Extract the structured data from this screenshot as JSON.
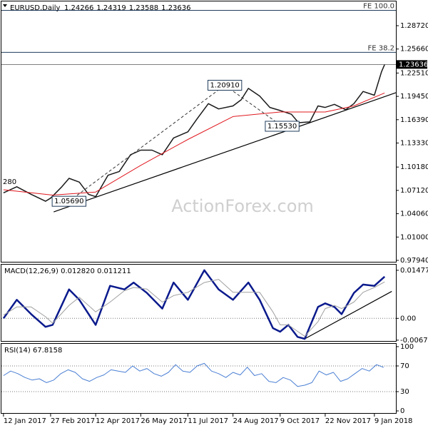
{
  "chart_data": [
    {
      "type": "line",
      "title": "EURUSD,Daily",
      "ohlc": [
        1.24266,
        1.24319,
        1.23588,
        1.23636
      ],
      "watermark": "ActionForex.com",
      "cut_label": "280",
      "last_price": 1.23636,
      "xlim": [
        "2017-01-10",
        "2018-01-30"
      ],
      "ylim": [
        0.9766,
        1.3078
      ],
      "yticks": [
        {
          "value": 1.2872,
          "label": "1.28720"
        },
        {
          "value": 1.2566,
          "label": "1.25660"
        },
        {
          "value": 1.2251,
          "label": "1.22510"
        },
        {
          "value": 1.1945,
          "label": "1.19450"
        },
        {
          "value": 1.1639,
          "label": "1.16390"
        },
        {
          "value": 1.1333,
          "label": "1.13330"
        },
        {
          "value": 1.1018,
          "label": "1.10180"
        },
        {
          "value": 1.0712,
          "label": "1.07120"
        },
        {
          "value": 1.0406,
          "label": "1.04060"
        },
        {
          "value": 1.01,
          "label": "1.01000"
        },
        {
          "value": 0.9794,
          "label": "0.97940"
        }
      ],
      "series": [
        {
          "color": "#1a1a1a",
          "x": [
            "2017-01-12",
            "2017-01-25",
            "2017-02-08",
            "2017-02-22",
            "2017-02-27",
            "2017-03-10",
            "2017-03-17",
            "2017-03-27",
            "2017-04-05",
            "2017-04-12",
            "2017-04-24",
            "2017-05-05",
            "2017-05-16",
            "2017-05-26",
            "2017-06-06",
            "2017-06-16",
            "2017-06-27",
            "2017-07-11",
            "2017-07-20",
            "2017-07-31",
            "2017-08-10",
            "2017-08-24",
            "2017-09-01",
            "2017-09-08",
            "2017-09-19",
            "2017-09-29",
            "2017-10-09",
            "2017-10-20",
            "2017-10-27",
            "2017-11-07",
            "2017-11-15",
            "2017-11-22",
            "2017-12-01",
            "2017-12-12",
            "2017-12-20",
            "2017-12-29",
            "2018-01-09",
            "2018-01-16",
            "2018-01-19"
          ],
          "values": [
            1.068,
            1.076,
            1.066,
            1.057,
            1.061,
            1.076,
            1.087,
            1.082,
            1.066,
            1.063,
            1.091,
            1.096,
            1.118,
            1.124,
            1.124,
            1.118,
            1.14,
            1.148,
            1.165,
            1.185,
            1.178,
            1.182,
            1.19,
            1.205,
            1.195,
            1.18,
            1.176,
            1.171,
            1.16,
            1.161,
            1.182,
            1.18,
            1.184,
            1.177,
            1.185,
            1.201,
            1.196,
            1.227,
            1.23636
          ]
        },
        {
          "color": "#e0181f",
          "x": [
            "2017-01-12",
            "2017-03-01",
            "2017-04-12",
            "2017-05-26",
            "2017-07-11",
            "2017-08-24",
            "2017-10-09",
            "2017-11-22",
            "2017-12-20",
            "2018-01-19"
          ],
          "values": [
            1.072,
            1.065,
            1.069,
            1.104,
            1.138,
            1.168,
            1.174,
            1.174,
            1.182,
            1.199
          ]
        }
      ],
      "trendlines": [
        {
          "color": "#000000",
          "x": [
            "2017-03-02",
            "2018-01-30"
          ],
          "values": [
            1.043,
            1.1993
          ]
        }
      ],
      "levels": [
        {
          "label": "FE 100.0",
          "value": 1.3073
        },
        {
          "label": "FE 38.2",
          "value": 1.2522
        }
      ],
      "annotations": [
        {
          "label": "1.05690",
          "value": 1.0569,
          "x": "2017-03-17"
        },
        {
          "label": "1.20910",
          "value": 1.2091,
          "x": "2017-08-16"
        },
        {
          "label": "1.15530",
          "value": 1.1553,
          "x": "2017-10-11"
        }
      ]
    },
    {
      "type": "line",
      "title": "MACD(12,26,9) 0.012820 0.011211",
      "xlim": [
        "2017-01-10",
        "2018-01-30"
      ],
      "ylim": [
        -0.00695,
        0.01651
      ],
      "yticks": [
        0.014776,
        {
          "value": 0,
          "label": "0.00"
        },
        -0.006705
      ],
      "levels": [
        0
      ],
      "series": [
        {
          "color": "#0a1a8c",
          "x": [
            "2017-01-12",
            "2017-01-25",
            "2017-02-08",
            "2017-02-22",
            "2017-03-01",
            "2017-03-17",
            "2017-03-27",
            "2017-04-12",
            "2017-04-26",
            "2017-05-10",
            "2017-05-19",
            "2017-06-01",
            "2017-06-16",
            "2017-06-27",
            "2017-07-11",
            "2017-07-27",
            "2017-08-10",
            "2017-08-24",
            "2017-09-08",
            "2017-09-19",
            "2017-10-02",
            "2017-10-09",
            "2017-10-17",
            "2017-10-26",
            "2017-11-02",
            "2017-11-15",
            "2017-11-22",
            "2017-12-01",
            "2017-12-08",
            "2017-12-20",
            "2017-12-29",
            "2018-01-09",
            "2018-01-19"
          ],
          "values": [
            0.0,
            0.0057,
            0.0013,
            -0.0026,
            -0.002,
            0.0089,
            0.0057,
            -0.002,
            0.01,
            0.0089,
            0.011,
            0.0078,
            0.003,
            0.011,
            0.0057,
            0.0148,
            0.0089,
            0.0057,
            0.011,
            0.0057,
            -0.003,
            -0.0041,
            -0.002,
            -0.0057,
            -0.0063,
            0.0035,
            0.0046,
            0.0035,
            0.0013,
            0.0078,
            0.0104,
            0.01,
            0.01282
          ]
        },
        {
          "color": "#a0a0a0",
          "x": [
            "2017-01-12",
            "2017-01-25",
            "2017-02-08",
            "2017-02-22",
            "2017-03-01",
            "2017-03-17",
            "2017-03-27",
            "2017-04-12",
            "2017-04-26",
            "2017-05-10",
            "2017-05-19",
            "2017-06-01",
            "2017-06-16",
            "2017-06-27",
            "2017-07-11",
            "2017-07-27",
            "2017-08-10",
            "2017-08-24",
            "2017-09-08",
            "2017-09-19",
            "2017-10-02",
            "2017-10-09",
            "2017-10-17",
            "2017-10-26",
            "2017-11-02",
            "2017-11-15",
            "2017-11-22",
            "2017-12-01",
            "2017-12-08",
            "2017-12-20",
            "2017-12-29",
            "2018-01-09",
            "2018-01-19"
          ],
          "values": [
            0.001,
            0.0035,
            0.0035,
            0.0005,
            -0.0015,
            0.004,
            0.0065,
            0.002,
            0.005,
            0.0085,
            0.0095,
            0.009,
            0.005,
            0.007,
            0.008,
            0.011,
            0.012,
            0.008,
            0.008,
            0.008,
            0.002,
            -0.002,
            -0.002,
            -0.004,
            -0.0055,
            -0.001,
            0.003,
            0.004,
            0.003,
            0.005,
            0.008,
            0.0095,
            0.011211
          ]
        }
      ],
      "trendlines": [
        {
          "color": "#000000",
          "x": [
            "2017-11-02",
            "2018-01-26"
          ],
          "values": [
            -0.0063,
            0.0083
          ]
        }
      ]
    },
    {
      "type": "line",
      "title": "RSI(14) 67.8158",
      "xlim": [
        "2017-01-10",
        "2018-01-30"
      ],
      "ylim": [
        -4.4,
        104.4
      ],
      "yticks": [
        100,
        70,
        30,
        0
      ],
      "levels": [
        70,
        30
      ],
      "xticks": [
        {
          "value": "2017-01-12",
          "label": "12 Jan 2017"
        },
        {
          "value": "2017-02-27",
          "label": "27 Feb 2017"
        },
        {
          "value": "2017-04-12",
          "label": "12 Apr 2017"
        },
        {
          "value": "2017-05-26",
          "label": "26 May 2017"
        },
        {
          "value": "2017-07-11",
          "label": "11 Jul 2017"
        },
        {
          "value": "2017-08-24",
          "label": "24 Aug 2017"
        },
        {
          "value": "2017-10-09",
          "label": "9 Oct 2017"
        },
        {
          "value": "2017-11-22",
          "label": "22 Nov 2017"
        },
        {
          "value": "2018-01-09",
          "label": "9 Jan 2018"
        }
      ],
      "series": [
        {
          "color": "#4a7fd4",
          "x": [
            "2017-01-12",
            "2017-01-19",
            "2017-01-26",
            "2017-02-02",
            "2017-02-09",
            "2017-02-16",
            "2017-02-23",
            "2017-03-02",
            "2017-03-09",
            "2017-03-16",
            "2017-03-23",
            "2017-03-30",
            "2017-04-06",
            "2017-04-13",
            "2017-04-20",
            "2017-04-27",
            "2017-05-04",
            "2017-05-11",
            "2017-05-18",
            "2017-05-25",
            "2017-06-01",
            "2017-06-08",
            "2017-06-15",
            "2017-06-22",
            "2017-06-29",
            "2017-07-06",
            "2017-07-13",
            "2017-07-20",
            "2017-07-27",
            "2017-08-03",
            "2017-08-10",
            "2017-08-17",
            "2017-08-24",
            "2017-08-31",
            "2017-09-07",
            "2017-09-14",
            "2017-09-21",
            "2017-09-28",
            "2017-10-05",
            "2017-10-12",
            "2017-10-19",
            "2017-10-26",
            "2017-11-02",
            "2017-11-09",
            "2017-11-16",
            "2017-11-23",
            "2017-11-30",
            "2017-12-07",
            "2017-12-14",
            "2017-12-21",
            "2017-12-28",
            "2018-01-04",
            "2018-01-11",
            "2018-01-18"
          ],
          "values": [
            55,
            62,
            58,
            52,
            48,
            50,
            44,
            48,
            58,
            64,
            60,
            50,
            46,
            52,
            56,
            64,
            62,
            60,
            70,
            62,
            66,
            58,
            54,
            60,
            72,
            62,
            60,
            70,
            74,
            62,
            58,
            52,
            60,
            56,
            68,
            55,
            58,
            46,
            44,
            52,
            48,
            38,
            40,
            44,
            62,
            56,
            60,
            46,
            50,
            58,
            66,
            62,
            72,
            67.8
          ]
        }
      ]
    }
  ]
}
